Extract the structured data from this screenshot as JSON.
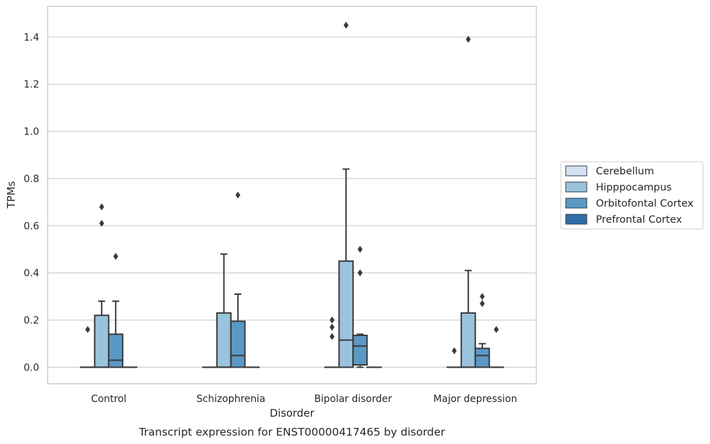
{
  "chart_data": {
    "type": "box",
    "caption": "Transcript expression for ENST00000417465 by disorder",
    "xlabel": "Disorder",
    "ylabel": "TPMs",
    "ylim": [
      -0.07,
      1.53
    ],
    "yticks": [
      "0.0",
      "0.2",
      "0.4",
      "0.6",
      "0.8",
      "1.0",
      "1.2",
      "1.4"
    ],
    "grid": "horizontal",
    "legend_position": "right",
    "categories": [
      "Control",
      "Schizophrenia",
      "Bipolar disorder",
      "Major depression"
    ],
    "series": [
      {
        "name": "Cerebellum",
        "color": "#d2e3f3",
        "boxes": [
          {
            "q1": 0,
            "median": 0,
            "q3": 0,
            "whisker_low": 0,
            "whisker_high": 0,
            "outliers": [
              0.16
            ]
          },
          {
            "q1": 0,
            "median": 0,
            "q3": 0,
            "whisker_low": 0,
            "whisker_high": 0,
            "outliers": []
          },
          {
            "q1": 0,
            "median": 0,
            "q3": 0,
            "whisker_low": 0,
            "whisker_high": 0,
            "outliers": [
              0.13,
              0.17,
              0.2
            ]
          },
          {
            "q1": 0,
            "median": 0,
            "q3": 0,
            "whisker_low": 0,
            "whisker_high": 0,
            "outliers": [
              0.07
            ]
          }
        ]
      },
      {
        "name": "Hipppocampus",
        "color": "#9ac3dd",
        "boxes": [
          {
            "q1": 0,
            "median": 0,
            "q3": 0.22,
            "whisker_low": 0,
            "whisker_high": 0.28,
            "outliers": [
              0.61,
              0.68
            ]
          },
          {
            "q1": 0,
            "median": 0,
            "q3": 0.23,
            "whisker_low": 0,
            "whisker_high": 0.48,
            "outliers": []
          },
          {
            "q1": 0,
            "median": 0.115,
            "q3": 0.45,
            "whisker_low": 0,
            "whisker_high": 0.84,
            "outliers": [
              1.45
            ]
          },
          {
            "q1": 0,
            "median": 0,
            "q3": 0.23,
            "whisker_low": 0,
            "whisker_high": 0.41,
            "outliers": [
              1.39
            ]
          }
        ]
      },
      {
        "name": "Orbitofontal Cortex",
        "color": "#5a98c5",
        "boxes": [
          {
            "q1": 0,
            "median": 0.03,
            "q3": 0.14,
            "whisker_low": 0,
            "whisker_high": 0.28,
            "outliers": [
              0.47
            ]
          },
          {
            "q1": 0,
            "median": 0.05,
            "q3": 0.195,
            "whisker_low": 0,
            "whisker_high": 0.31,
            "outliers": [
              0.73
            ]
          },
          {
            "q1": 0.01,
            "median": 0.09,
            "q3": 0.135,
            "whisker_low": 0,
            "whisker_high": 0.14,
            "outliers": [
              0.4,
              0.5
            ]
          },
          {
            "q1": 0,
            "median": 0.05,
            "q3": 0.08,
            "whisker_low": 0,
            "whisker_high": 0.1,
            "outliers": [
              0.27,
              0.3
            ]
          }
        ]
      },
      {
        "name": "Prefrontal Cortex",
        "color": "#2f6ea9",
        "boxes": [
          {
            "q1": 0,
            "median": 0,
            "q3": 0,
            "whisker_low": 0,
            "whisker_high": 0,
            "outliers": []
          },
          {
            "q1": 0,
            "median": 0,
            "q3": 0,
            "whisker_low": 0,
            "whisker_high": 0,
            "outliers": []
          },
          {
            "q1": 0,
            "median": 0,
            "q3": 0,
            "whisker_low": 0,
            "whisker_high": 0,
            "outliers": []
          },
          {
            "q1": 0,
            "median": 0,
            "q3": 0,
            "whisker_low": 0,
            "whisker_high": 0,
            "outliers": [
              0.16
            ]
          }
        ]
      }
    ]
  }
}
